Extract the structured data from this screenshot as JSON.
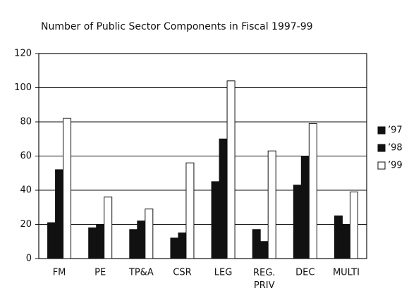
{
  "chart_data": {
    "type": "bar",
    "title": "Number of Public Sector Components in Fiscal 1997-99",
    "categories": [
      "FM",
      "PE",
      "TP&A",
      "CSR",
      "LEG",
      "REG. PRIV",
      "DEC",
      "MULTI"
    ],
    "series": [
      {
        "name": "’97",
        "color": "#111111",
        "values": [
          21,
          18,
          17,
          12,
          45,
          17,
          43,
          25
        ]
      },
      {
        "name": "’98",
        "color": "#111111",
        "values": [
          52,
          20,
          22,
          15,
          70,
          10,
          60,
          20
        ]
      },
      {
        "name": "’99",
        "color": "#ffffff",
        "values": [
          82,
          36,
          29,
          56,
          104,
          63,
          79,
          39
        ]
      }
    ],
    "ylim": [
      0,
      120
    ],
    "yticks": [
      0,
      20,
      40,
      60,
      80,
      100,
      120
    ],
    "grid": true,
    "legend": "right"
  }
}
